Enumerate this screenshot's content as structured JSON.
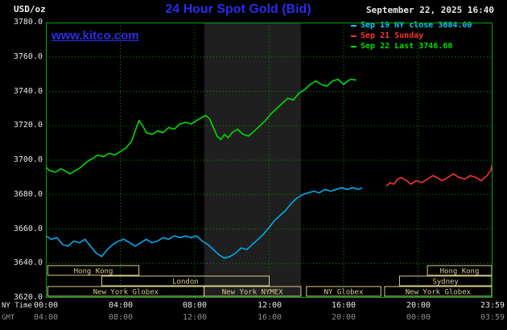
{
  "page": {
    "units": "USD/oz",
    "title": "24 Hour Spot Gold (Bid)",
    "datetime": "September 22, 2025 16:40",
    "watermark": "www.kitco.com",
    "ny_time_label": "NY Time",
    "gmt_label": "GMT"
  },
  "legend": {
    "items": [
      {
        "text": "Sep 19 NY close 3684.00",
        "color": "#00ccff"
      },
      {
        "text": "Sep 21 Sunday",
        "color": "#ff3232"
      },
      {
        "text": "Sep 22 Last 3746.60",
        "color": "#00dd00"
      }
    ]
  },
  "colors": {
    "background": "#000000",
    "title_blue": "#2b2bee",
    "band": "#1f1f1f",
    "grid": "#009900",
    "plot_border": "#00aa00",
    "session": "#d8cc8a",
    "axis_text": "#e8e8e8",
    "gmt_text": "#8f8f8f"
  },
  "chart_data": {
    "type": "line",
    "title": "24 Hour Spot Gold (Bid)",
    "ylabel": "USD/oz",
    "ylim": [
      3620,
      3780
    ],
    "x_hours_range": [
      0,
      24
    ],
    "grid": true,
    "legend_position": "top-right",
    "y_ticks": [
      3780,
      3760,
      3740,
      3720,
      3700,
      3680,
      3660,
      3640,
      3620
    ],
    "y_gridlines": [
      3760,
      3740,
      3720,
      3700,
      3680,
      3660,
      3640
    ],
    "x_gridline_hours": [
      4,
      8,
      12,
      16,
      20
    ],
    "x_ticks": [
      {
        "hour": 0,
        "ny": "00:00",
        "gmt": "04:00"
      },
      {
        "hour": 4,
        "ny": "04:00",
        "gmt": "08:00"
      },
      {
        "hour": 8,
        "ny": "08:00",
        "gmt": "12:00"
      },
      {
        "hour": 12,
        "ny": "12:00",
        "gmt": "16:00"
      },
      {
        "hour": 16,
        "ny": "16:00",
        "gmt": "20:00"
      },
      {
        "hour": 20,
        "ny": "20:00",
        "gmt": "00:00"
      },
      {
        "hour": 23.983,
        "ny": "23:59",
        "gmt": "03:59"
      }
    ],
    "nymex_band_hours": [
      8.5,
      13.7
    ],
    "series": [
      {
        "key": "sep19-ny-close",
        "name": "Sep 19 NY close",
        "close_value": 3684.0,
        "color": "#00aaee",
        "points": [
          [
            0,
            3656
          ],
          [
            0.3,
            3654
          ],
          [
            0.6,
            3655
          ],
          [
            0.9,
            3651
          ],
          [
            1.2,
            3650
          ],
          [
            1.5,
            3653
          ],
          [
            1.8,
            3652
          ],
          [
            2.1,
            3654
          ],
          [
            2.4,
            3650
          ],
          [
            2.7,
            3646
          ],
          [
            3,
            3644
          ],
          [
            3.3,
            3648
          ],
          [
            3.6,
            3651
          ],
          [
            3.9,
            3653
          ],
          [
            4.2,
            3654
          ],
          [
            4.5,
            3652
          ],
          [
            4.8,
            3650
          ],
          [
            5.1,
            3652
          ],
          [
            5.4,
            3654
          ],
          [
            5.7,
            3652
          ],
          [
            6,
            3653
          ],
          [
            6.3,
            3655
          ],
          [
            6.6,
            3654
          ],
          [
            6.9,
            3656
          ],
          [
            7.2,
            3655
          ],
          [
            7.5,
            3656
          ],
          [
            7.8,
            3655
          ],
          [
            8.1,
            3656
          ],
          [
            8.4,
            3653
          ],
          [
            8.7,
            3651
          ],
          [
            9,
            3648
          ],
          [
            9.3,
            3645
          ],
          [
            9.6,
            3643
          ],
          [
            9.9,
            3644
          ],
          [
            10.2,
            3646
          ],
          [
            10.5,
            3649
          ],
          [
            10.8,
            3648
          ],
          [
            11.1,
            3651
          ],
          [
            11.4,
            3654
          ],
          [
            11.7,
            3657
          ],
          [
            12,
            3661
          ],
          [
            12.3,
            3665
          ],
          [
            12.6,
            3668
          ],
          [
            12.9,
            3671
          ],
          [
            13.2,
            3675
          ],
          [
            13.5,
            3678
          ],
          [
            13.8,
            3680
          ],
          [
            14.1,
            3681
          ],
          [
            14.4,
            3682
          ],
          [
            14.7,
            3681
          ],
          [
            15,
            3683
          ],
          [
            15.3,
            3682
          ],
          [
            15.6,
            3683
          ],
          [
            15.9,
            3684
          ],
          [
            16.2,
            3683
          ],
          [
            16.5,
            3684
          ],
          [
            16.8,
            3683
          ],
          [
            17,
            3684
          ]
        ]
      },
      {
        "key": "sep21-sunday",
        "name": "Sep 21 Sunday",
        "color": "#ff3232",
        "points": [
          [
            18.3,
            3685
          ],
          [
            18.5,
            3687
          ],
          [
            18.7,
            3686
          ],
          [
            18.9,
            3689
          ],
          [
            19.1,
            3690
          ],
          [
            19.4,
            3688
          ],
          [
            19.6,
            3686
          ],
          [
            19.9,
            3688
          ],
          [
            20.2,
            3687
          ],
          [
            20.5,
            3689
          ],
          [
            20.8,
            3691
          ],
          [
            21,
            3690
          ],
          [
            21.3,
            3688
          ],
          [
            21.6,
            3690
          ],
          [
            21.9,
            3692
          ],
          [
            22.2,
            3690
          ],
          [
            22.5,
            3689
          ],
          [
            22.8,
            3691
          ],
          [
            23.1,
            3690
          ],
          [
            23.4,
            3688
          ],
          [
            23.7,
            3691
          ],
          [
            23.9,
            3694
          ],
          [
            23.98,
            3697
          ]
        ]
      },
      {
        "key": "sep22-last",
        "name": "Sep 22 Last",
        "last_value": 3746.6,
        "color": "#00dd00",
        "points": [
          [
            0,
            3696
          ],
          [
            0.2,
            3694
          ],
          [
            0.5,
            3693
          ],
          [
            0.8,
            3695
          ],
          [
            1,
            3694
          ],
          [
            1.3,
            3692
          ],
          [
            1.6,
            3694
          ],
          [
            1.9,
            3696
          ],
          [
            2.2,
            3699
          ],
          [
            2.5,
            3701
          ],
          [
            2.8,
            3703
          ],
          [
            3.1,
            3702
          ],
          [
            3.4,
            3704
          ],
          [
            3.7,
            3703
          ],
          [
            4,
            3705
          ],
          [
            4.3,
            3707
          ],
          [
            4.6,
            3711
          ],
          [
            4.8,
            3717
          ],
          [
            5,
            3723
          ],
          [
            5.2,
            3720
          ],
          [
            5.4,
            3716
          ],
          [
            5.7,
            3715
          ],
          [
            6,
            3717
          ],
          [
            6.3,
            3716
          ],
          [
            6.6,
            3719
          ],
          [
            6.9,
            3718
          ],
          [
            7.2,
            3721
          ],
          [
            7.5,
            3722
          ],
          [
            7.8,
            3721
          ],
          [
            8.1,
            3723
          ],
          [
            8.4,
            3725
          ],
          [
            8.6,
            3726
          ],
          [
            8.8,
            3724
          ],
          [
            9,
            3719
          ],
          [
            9.2,
            3714
          ],
          [
            9.4,
            3712
          ],
          [
            9.6,
            3715
          ],
          [
            9.8,
            3713
          ],
          [
            10,
            3716
          ],
          [
            10.3,
            3718
          ],
          [
            10.6,
            3715
          ],
          [
            10.9,
            3714
          ],
          [
            11.2,
            3717
          ],
          [
            11.5,
            3720
          ],
          [
            11.8,
            3723
          ],
          [
            12.1,
            3727
          ],
          [
            12.4,
            3730
          ],
          [
            12.7,
            3733
          ],
          [
            13,
            3736
          ],
          [
            13.3,
            3735
          ],
          [
            13.6,
            3739
          ],
          [
            13.9,
            3741
          ],
          [
            14.2,
            3744
          ],
          [
            14.5,
            3746
          ],
          [
            14.8,
            3744
          ],
          [
            15.1,
            3743
          ],
          [
            15.4,
            3746
          ],
          [
            15.7,
            3747
          ],
          [
            16,
            3744
          ],
          [
            16.2,
            3746
          ],
          [
            16.4,
            3747
          ],
          [
            16.67,
            3746.6
          ]
        ]
      }
    ],
    "sessions": [
      {
        "label": "Hong Kong",
        "row": 0,
        "start": 0.1,
        "end": 5
      },
      {
        "label": "Hong Kong",
        "row": 0,
        "start": 20.5,
        "end": 23.95
      },
      {
        "label": "London",
        "row": 1,
        "start": 3,
        "end": 12
      },
      {
        "label": "Sydney",
        "row": 1,
        "start": 19,
        "end": 23.95
      },
      {
        "label": "New York Globex",
        "row": 2,
        "start": 0.1,
        "end": 8.5
      },
      {
        "label": "New York NYMEX",
        "row": 2,
        "start": 8.5,
        "end": 13.7
      },
      {
        "label": "NY Globex",
        "row": 2,
        "start": 14,
        "end": 18
      },
      {
        "label": "New York Globex",
        "row": 2,
        "start": 18.2,
        "end": 23.95
      }
    ]
  }
}
